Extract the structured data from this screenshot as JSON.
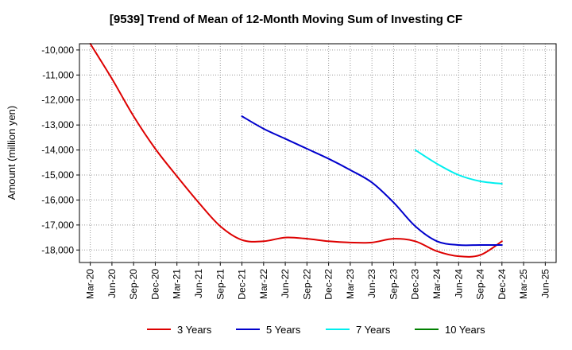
{
  "chart_data": {
    "type": "line",
    "title": "[9539]  Trend of Mean of 12-Month Moving Sum of Investing CF",
    "xlabel": "",
    "ylabel": "Amount (million yen)",
    "ylim": [
      -18500,
      -9750
    ],
    "y_ticks": [
      -10000,
      -11000,
      -12000,
      -13000,
      -14000,
      -15000,
      -16000,
      -17000,
      -18000
    ],
    "y_tick_labels": [
      "-10,000",
      "-11,000",
      "-12,000",
      "-13,000",
      "-14,000",
      "-15,000",
      "-16,000",
      "-17,000",
      "-18,000"
    ],
    "x_tick_labels": [
      "Mar-20",
      "Jun-20",
      "Sep-20",
      "Dec-20",
      "Mar-21",
      "Jun-21",
      "Sep-21",
      "Dec-21",
      "Mar-22",
      "Jun-22",
      "Sep-22",
      "Dec-22",
      "Mar-23",
      "Jun-23",
      "Sep-23",
      "Dec-23",
      "Mar-24",
      "Jun-24",
      "Sep-24",
      "Dec-24",
      "Mar-25",
      "Jun-25"
    ],
    "grid": true,
    "legend_position": "bottom",
    "series": [
      {
        "name": "3 Years",
        "color": "#dd0000",
        "x": [
          0,
          1,
          2,
          3,
          4,
          5,
          6,
          7,
          8,
          9,
          10,
          11,
          12,
          13,
          14,
          15,
          16,
          17,
          18,
          19
        ],
        "values": [
          -9750,
          -11150,
          -12650,
          -13950,
          -15050,
          -16100,
          -17050,
          -17600,
          -17650,
          -17500,
          -17550,
          -17650,
          -17700,
          -17700,
          -17550,
          -17650,
          -18050,
          -18250,
          -18200,
          -17650
        ]
      },
      {
        "name": "5 Years",
        "color": "#0000cc",
        "x": [
          7,
          8,
          9,
          10,
          11,
          12,
          13,
          14,
          15,
          16,
          17,
          18,
          19
        ],
        "values": [
          -12650,
          -13150,
          -13550,
          -13950,
          -14350,
          -14800,
          -15300,
          -16100,
          -17050,
          -17650,
          -17800,
          -17800,
          -17800
        ]
      },
      {
        "name": "7 Years",
        "color": "#00eeee",
        "x": [
          15,
          16,
          17,
          18,
          19
        ],
        "values": [
          -14000,
          -14550,
          -15000,
          -15250,
          -15350
        ]
      },
      {
        "name": "10 Years",
        "color": "#008000",
        "x": [],
        "values": []
      }
    ]
  }
}
